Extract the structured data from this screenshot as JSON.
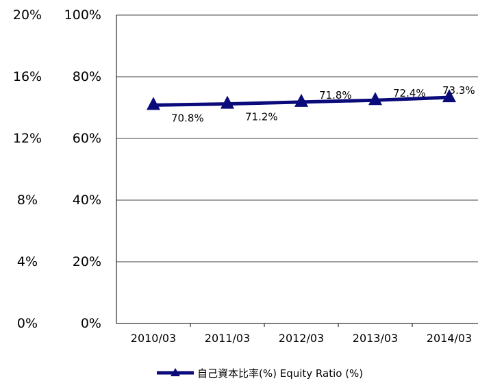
{
  "chart_data": {
    "type": "line",
    "categories": [
      "2010/03",
      "2011/03",
      "2012/03",
      "2013/03",
      "2014/03"
    ],
    "series": [
      {
        "name": "自己資本比率(%) Equity Ratio (%)",
        "values": [
          70.8,
          71.2,
          71.8,
          72.4,
          73.3
        ],
        "labels": [
          "70.8%",
          "71.2%",
          "71.8%",
          "72.4%",
          "73.3%"
        ],
        "color": "#0a0a7a",
        "marker": "triangle"
      }
    ],
    "y_left": {
      "ylim": [
        0,
        20
      ],
      "ticks": [
        "0%",
        "4%",
        "8%",
        "12%",
        "16%",
        "20%"
      ]
    },
    "y_right": {
      "ylim": [
        0,
        100
      ],
      "ticks": [
        "0%",
        "20%",
        "40%",
        "60%",
        "80%",
        "100%"
      ]
    },
    "grid": true,
    "legend": "bottom"
  }
}
